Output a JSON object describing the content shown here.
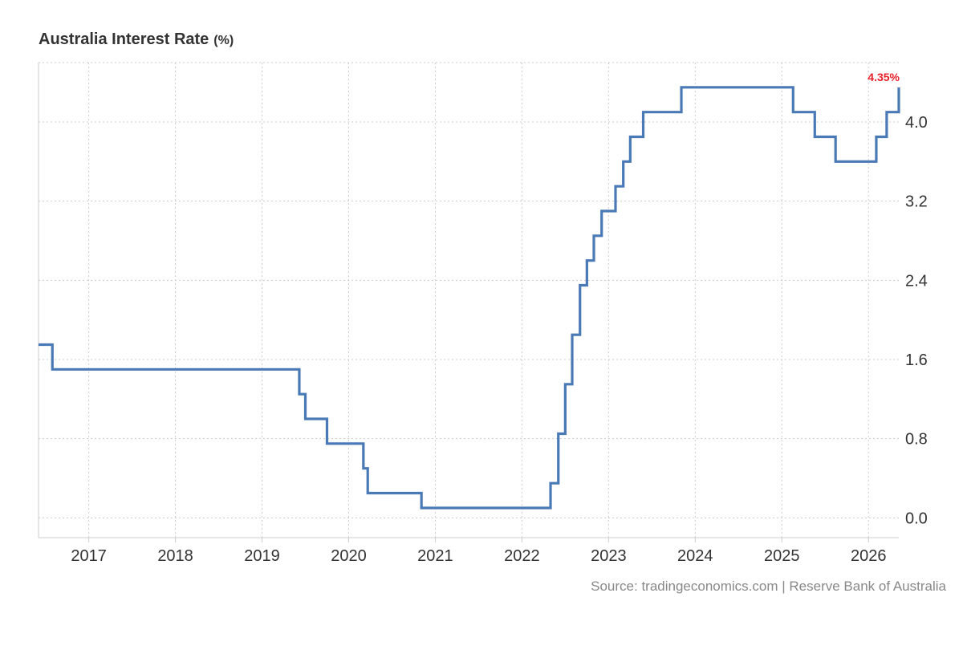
{
  "title": "Australia Interest Rate",
  "unit": "(%)",
  "source": "Source: tradingeconomics.com | Reserve Bank of Australia",
  "latest_label": "4.35%",
  "colors": {
    "line": "#4a7ab5",
    "latest": "#e8202a",
    "grid": "#cccccc"
  },
  "chart_data": {
    "type": "line",
    "step": true,
    "grid": true,
    "xlim": [
      2016.42,
      2026.35
    ],
    "ylim": [
      -0.2,
      4.6
    ],
    "x_ticks": [
      2017,
      2018,
      2019,
      2020,
      2021,
      2022,
      2023,
      2024,
      2025,
      2026
    ],
    "x_tick_labels": [
      "2017",
      "2018",
      "2019",
      "2020",
      "2021",
      "2022",
      "2023",
      "2024",
      "2025",
      "2026"
    ],
    "y_ticks": [
      0,
      0.8,
      1.6,
      2.4,
      3.2,
      4.0
    ],
    "y_tick_labels": [
      "0.0",
      "0.8",
      "1.6",
      "2.4",
      "3.2",
      "4.0"
    ],
    "y_axis_position": "right",
    "series": [
      {
        "x": [
          2016.42,
          2016.58,
          2019.43,
          2019.5,
          2019.75,
          2020.17,
          2020.22,
          2020.84,
          2022.33,
          2022.42,
          2022.5,
          2022.58,
          2022.67,
          2022.75,
          2022.83,
          2022.92,
          2023.08,
          2023.17,
          2023.25,
          2023.4,
          2023.5,
          2023.84,
          2025.13,
          2025.38,
          2025.62,
          2026.09,
          2026.21,
          2026.35
        ],
        "y": [
          1.75,
          1.5,
          1.25,
          1.0,
          0.75,
          0.5,
          0.25,
          0.1,
          0.35,
          0.85,
          1.35,
          1.85,
          2.35,
          2.6,
          2.85,
          3.1,
          3.35,
          3.6,
          3.85,
          4.1,
          4.1,
          4.35,
          4.1,
          3.85,
          3.6,
          3.85,
          4.1,
          4.35
        ]
      }
    ]
  }
}
